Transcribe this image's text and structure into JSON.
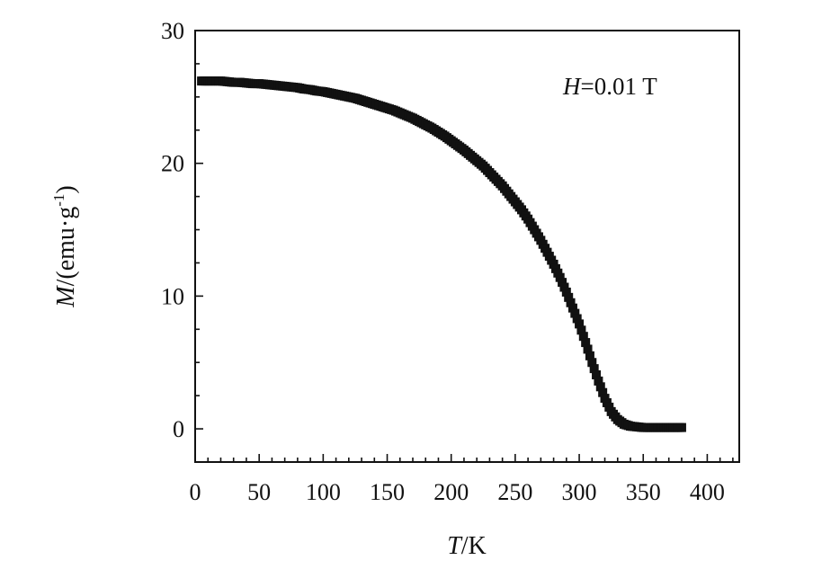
{
  "chart_data": {
    "type": "scatter",
    "title": "",
    "xlabel_italic": "T",
    "xlabel_rest": "/K",
    "ylabel_italic": "M",
    "ylabel_rest": "/(emu·g",
    "ylabel_sup": "-1",
    "ylabel_close": ")",
    "annotation_italic": "H",
    "annotation_rest": "=0.01 T",
    "xlim": [
      0,
      425
    ],
    "ylim": [
      -2.5,
      30
    ],
    "xticks": [
      0,
      50,
      100,
      150,
      200,
      250,
      300,
      350,
      400
    ],
    "yticks": [
      0,
      10,
      20,
      30
    ],
    "grid": false,
    "marker_color": "#111111",
    "series": [
      {
        "points": [
          [
            5,
            26.2
          ],
          [
            10,
            26.2
          ],
          [
            15,
            26.2
          ],
          [
            20,
            26.2
          ],
          [
            25,
            26.15
          ],
          [
            30,
            26.1
          ],
          [
            35,
            26.1
          ],
          [
            40,
            26.05
          ],
          [
            45,
            26.0
          ],
          [
            50,
            26.0
          ],
          [
            55,
            25.95
          ],
          [
            60,
            25.9
          ],
          [
            65,
            25.85
          ],
          [
            70,
            25.8
          ],
          [
            75,
            25.75
          ],
          [
            80,
            25.7
          ],
          [
            85,
            25.6
          ],
          [
            90,
            25.55
          ],
          [
            95,
            25.45
          ],
          [
            100,
            25.4
          ],
          [
            105,
            25.3
          ],
          [
            110,
            25.2
          ],
          [
            115,
            25.1
          ],
          [
            120,
            25.0
          ],
          [
            125,
            24.9
          ],
          [
            130,
            24.75
          ],
          [
            135,
            24.6
          ],
          [
            140,
            24.45
          ],
          [
            145,
            24.3
          ],
          [
            150,
            24.15
          ],
          [
            155,
            24.0
          ],
          [
            160,
            23.8
          ],
          [
            165,
            23.6
          ],
          [
            170,
            23.4
          ],
          [
            175,
            23.15
          ],
          [
            180,
            22.9
          ],
          [
            185,
            22.65
          ],
          [
            190,
            22.35
          ],
          [
            195,
            22.05
          ],
          [
            200,
            21.7
          ],
          [
            205,
            21.35
          ],
          [
            210,
            21.0
          ],
          [
            215,
            20.6
          ],
          [
            220,
            20.2
          ],
          [
            225,
            19.8
          ],
          [
            230,
            19.3
          ],
          [
            235,
            18.8
          ],
          [
            240,
            18.3
          ],
          [
            245,
            17.7
          ],
          [
            250,
            17.1
          ],
          [
            255,
            16.5
          ],
          [
            260,
            15.8
          ],
          [
            265,
            15.0
          ],
          [
            270,
            14.2
          ],
          [
            275,
            13.3
          ],
          [
            280,
            12.4
          ],
          [
            285,
            11.4
          ],
          [
            290,
            10.3
          ],
          [
            295,
            9.1
          ],
          [
            300,
            7.9
          ],
          [
            305,
            6.5
          ],
          [
            310,
            5.0
          ],
          [
            315,
            3.6
          ],
          [
            320,
            2.3
          ],
          [
            325,
            1.3
          ],
          [
            330,
            0.7
          ],
          [
            335,
            0.35
          ],
          [
            340,
            0.2
          ],
          [
            345,
            0.15
          ],
          [
            350,
            0.1
          ],
          [
            355,
            0.1
          ],
          [
            360,
            0.1
          ],
          [
            365,
            0.1
          ],
          [
            370,
            0.1
          ],
          [
            375,
            0.1
          ],
          [
            380,
            0.1
          ]
        ]
      }
    ]
  }
}
